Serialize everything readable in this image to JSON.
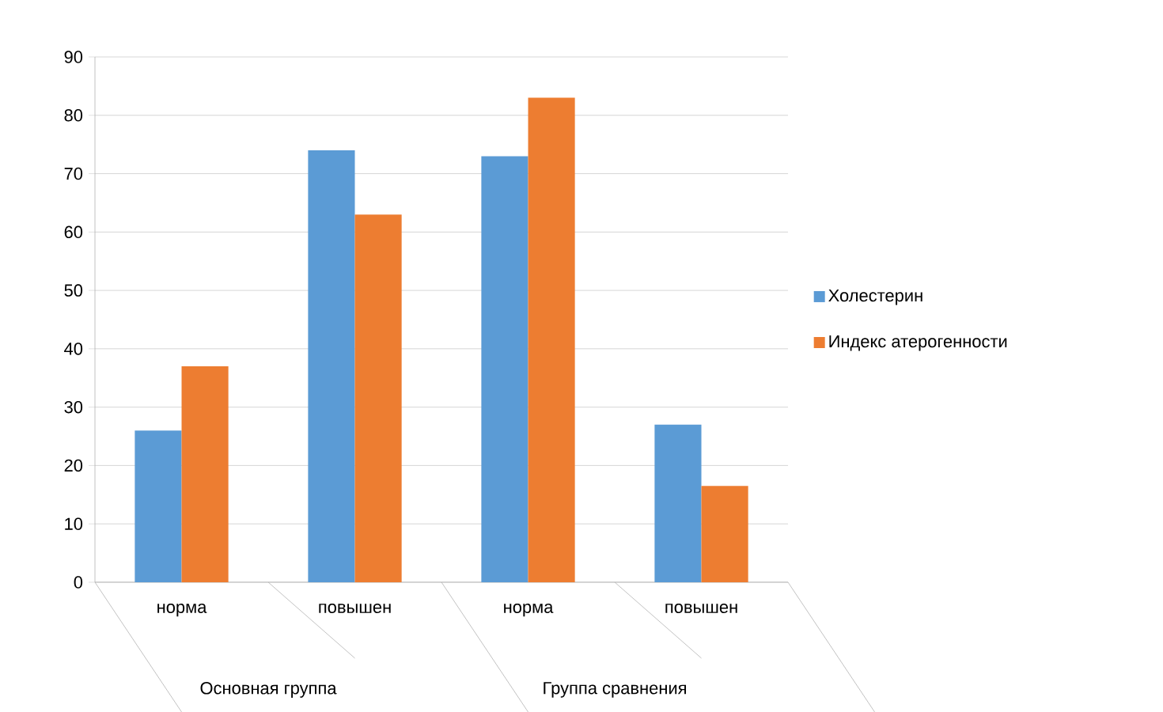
{
  "chart_data": {
    "type": "bar",
    "categories": [
      "норма",
      "повышен",
      "норма",
      "повышен"
    ],
    "series": [
      {
        "name": "Холестерин",
        "color": "#5b9bd5",
        "values": [
          26,
          74,
          73,
          27
        ]
      },
      {
        "name": "Индекс  атерогенности",
        "color": "#ed7d31",
        "values": [
          37,
          63,
          83,
          16.5
        ]
      }
    ],
    "ylim": [
      0,
      90
    ],
    "yticks": [
      0,
      10,
      20,
      30,
      40,
      50,
      60,
      70,
      80,
      90
    ],
    "grid": "y",
    "legend": "right",
    "annotations": [
      "Основная группа",
      "Группа сравнения"
    ]
  }
}
